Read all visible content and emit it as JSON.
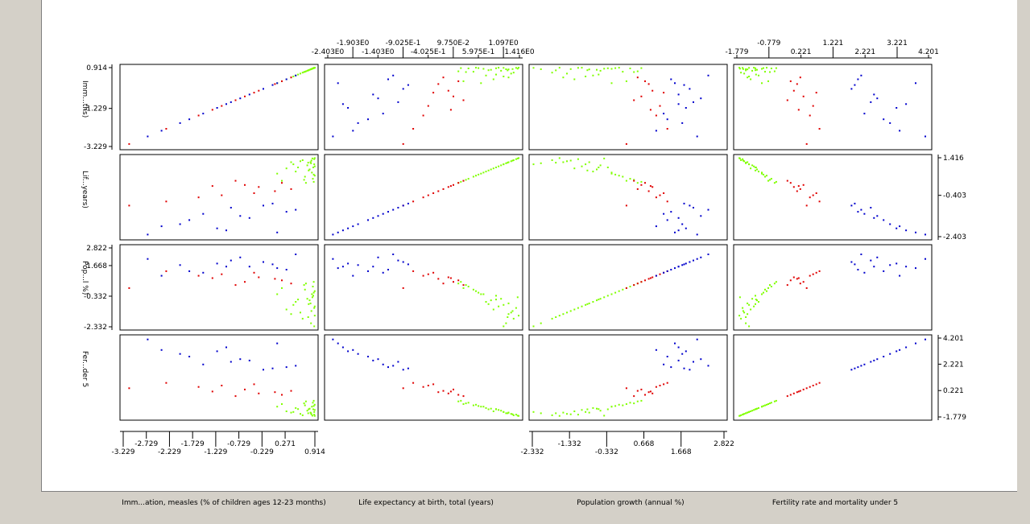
{
  "chart_data": {
    "type": "scatter-matrix",
    "variables": [
      {
        "name": "Imm...ths)",
        "full": "Imm...ation, measles (% of children ages 12-23 months)",
        "range": [
          -3.229,
          0.914
        ]
      },
      {
        "name": "Lif...years)",
        "full": "Life expectancy at birth, total (years)",
        "range": [
          -2.403,
          1.416
        ]
      },
      {
        "name": "Pop...l %)",
        "full": "Population growth (annual %)",
        "range": [
          -2.332,
          2.822
        ]
      },
      {
        "name": "Fer...der 5",
        "full": "Fertility rate and mortality under 5",
        "range": [
          -1.779,
          4.201
        ]
      }
    ],
    "axes": {
      "left_row0": {
        "ticks": [
          0.914,
          -1.229,
          -3.229
        ],
        "labels": [
          "0.914",
          "-1.229",
          "-3.229"
        ]
      },
      "right_row1": {
        "ticks": [
          1.416,
          -0.403,
          -2.403
        ],
        "labels": [
          "1.416",
          "-0.403",
          "-2.403"
        ]
      },
      "left_row2": {
        "ticks": [
          2.822,
          1.668,
          -0.332,
          -2.332
        ],
        "labels": [
          "2.822",
          "1.668",
          "-0.332",
          "-2.332"
        ]
      },
      "right_row3": {
        "ticks": [
          4.201,
          2.221,
          0.221,
          -1.779
        ],
        "labels": [
          "4.201",
          "2.221",
          "0.221",
          "-1.779"
        ]
      },
      "top_col1": {
        "upper": [
          {
            "v": -1.903,
            "t": "-1.903E0"
          },
          {
            "v": -0.9025,
            "t": "-9.025E-1"
          },
          {
            "v": 0.0975,
            "t": "9.750E-2"
          },
          {
            "v": 1.097,
            "t": "1.097E0"
          }
        ],
        "lower": [
          {
            "v": -2.403,
            "t": "-2.403E0"
          },
          {
            "v": -1.403,
            "t": "-1.403E0"
          },
          {
            "v": -0.4025,
            "t": "-4.025E-1"
          },
          {
            "v": 0.5975,
            "t": "5.975E-1"
          },
          {
            "v": 1.416,
            "t": "1.416E0"
          }
        ]
      },
      "top_col3": {
        "upper": [
          {
            "v": -0.779,
            "t": "-0.779"
          },
          {
            "v": 1.221,
            "t": "1.221"
          },
          {
            "v": 3.221,
            "t": "3.221"
          }
        ],
        "lower": [
          {
            "v": -1.779,
            "t": "-1.779"
          },
          {
            "v": 0.221,
            "t": "0.221"
          },
          {
            "v": 2.221,
            "t": "2.221"
          },
          {
            "v": 4.201,
            "t": "4.201"
          }
        ]
      },
      "bottom_col0": {
        "upper": [
          {
            "v": -2.729,
            "t": "-2.729"
          },
          {
            "v": -1.729,
            "t": "-1.729"
          },
          {
            "v": -0.729,
            "t": "-0.729"
          },
          {
            "v": 0.271,
            "t": "0.271"
          }
        ],
        "lower": [
          {
            "v": -3.229,
            "t": "-3.229"
          },
          {
            "v": -2.229,
            "t": "-2.229"
          },
          {
            "v": -1.229,
            "t": "-1.229"
          },
          {
            "v": -0.229,
            "t": "-0.229"
          },
          {
            "v": 0.914,
            "t": "0.914"
          }
        ]
      },
      "bottom_col2": {
        "upper": [
          {
            "v": -1.332,
            "t": "-1.332"
          },
          {
            "v": 0.668,
            "t": "0.668"
          },
          {
            "v": 2.822,
            "t": "2.822"
          }
        ],
        "lower": [
          {
            "v": -2.332,
            "t": "-2.332"
          },
          {
            "v": -0.332,
            "t": "-0.332"
          },
          {
            "v": 1.668,
            "t": "1.668"
          }
        ]
      }
    },
    "cluster_colors": {
      "green": "#80ff00",
      "red": "#e00000",
      "blue": "#0000cc"
    },
    "observations": [
      {
        "c": 0,
        "v": [
          0.82,
          1.2,
          -0.8,
          -1.45
        ]
      },
      {
        "c": 0,
        "v": [
          0.9,
          1.35,
          -1.1,
          -1.6
        ]
      },
      {
        "c": 0,
        "v": [
          0.75,
          1.05,
          -0.5,
          -1.3
        ]
      },
      {
        "c": 0,
        "v": [
          0.88,
          0.95,
          -0.3,
          -1.2
        ]
      },
      {
        "c": 0,
        "v": [
          0.6,
          1.25,
          -1.4,
          -1.55
        ]
      },
      {
        "c": 0,
        "v": [
          0.85,
          0.7,
          -0.2,
          -1.0
        ]
      },
      {
        "c": 0,
        "v": [
          0.45,
          1.1,
          -0.9,
          -1.4
        ]
      },
      {
        "c": 0,
        "v": [
          0.91,
          1.4,
          -1.6,
          -1.7
        ]
      },
      {
        "c": 0,
        "v": [
          0.7,
          0.5,
          0.1,
          -0.9
        ]
      },
      {
        "c": 0,
        "v": [
          0.8,
          0.85,
          -0.6,
          -1.15
        ]
      },
      {
        "c": 0,
        "v": [
          0.3,
          0.9,
          -1.2,
          -1.35
        ]
      },
      {
        "c": 0,
        "v": [
          0.87,
          0.4,
          0.3,
          -0.7
        ]
      },
      {
        "c": 0,
        "v": [
          0.65,
          1.3,
          -1.8,
          -1.65
        ]
      },
      {
        "c": 0,
        "v": [
          0.89,
          0.6,
          -0.1,
          -0.95
        ]
      },
      {
        "c": 0,
        "v": [
          0.5,
          0.75,
          -0.7,
          -1.1
        ]
      },
      {
        "c": 0,
        "v": [
          0.83,
          1.15,
          -2.1,
          -1.5
        ]
      },
      {
        "c": 0,
        "v": [
          0.2,
          0.3,
          0.2,
          -0.8
        ]
      },
      {
        "c": 0,
        "v": [
          0.91,
          1.0,
          -1.0,
          -1.25
        ]
      },
      {
        "c": 0,
        "v": [
          0.72,
          0.2,
          0.5,
          -0.6
        ]
      },
      {
        "c": 0,
        "v": [
          0.86,
          1.38,
          -0.4,
          -1.68
        ]
      },
      {
        "c": 0,
        "v": [
          0.4,
          1.2,
          -1.5,
          -1.45
        ]
      },
      {
        "c": 0,
        "v": [
          0.78,
          0.8,
          -0.85,
          -1.2
        ]
      },
      {
        "c": 0,
        "v": [
          0.91,
          0.55,
          0.0,
          -0.85
        ]
      },
      {
        "c": 0,
        "v": [
          0.1,
          0.65,
          -0.2,
          -1.0
        ]
      },
      {
        "c": 0,
        "v": [
          0.84,
          1.28,
          -1.3,
          -1.58
        ]
      },
      {
        "c": 0,
        "v": [
          0.68,
          0.35,
          0.4,
          -0.75
        ]
      },
      {
        "c": 0,
        "v": [
          0.9,
          1.1,
          -2.3,
          -1.4
        ]
      },
      {
        "c": 0,
        "v": [
          0.55,
          0.95,
          -0.55,
          -1.18
        ]
      },
      {
        "c": 0,
        "v": [
          0.89,
          0.25,
          0.6,
          -0.55
        ]
      },
      {
        "c": 0,
        "v": [
          0.77,
          1.18,
          -1.7,
          -1.5
        ]
      },
      {
        "c": 1,
        "v": [
          0.05,
          -0.2,
          0.8,
          0.1
        ]
      },
      {
        "c": 1,
        "v": [
          -0.6,
          0.1,
          0.6,
          0.3
        ]
      },
      {
        "c": 1,
        "v": [
          -1.1,
          -0.4,
          1.1,
          0.6
        ]
      },
      {
        "c": 1,
        "v": [
          -0.3,
          0.0,
          0.9,
          0.0
        ]
      },
      {
        "c": 1,
        "v": [
          0.4,
          -0.1,
          0.5,
          0.2
        ]
      },
      {
        "c": 1,
        "v": [
          -2.3,
          -0.7,
          1.3,
          0.8
        ]
      },
      {
        "c": 1,
        "v": [
          -0.8,
          0.3,
          0.4,
          -0.2
        ]
      },
      {
        "c": 1,
        "v": [
          -1.6,
          -0.5,
          1.0,
          0.5
        ]
      },
      {
        "c": 1,
        "v": [
          0.2,
          0.2,
          0.7,
          -0.1
        ]
      },
      {
        "c": 1,
        "v": [
          -3.1,
          -0.9,
          0.2,
          0.4
        ]
      },
      {
        "c": 1,
        "v": [
          -0.4,
          -0.3,
          1.2,
          0.7
        ]
      },
      {
        "c": 1,
        "v": [
          -1.3,
          0.05,
          0.85,
          0.15
        ]
      },
      {
        "c": 2,
        "v": [
          -0.5,
          -1.5,
          1.6,
          2.5
        ]
      },
      {
        "c": 2,
        "v": [
          -1.2,
          -2.0,
          1.8,
          3.2
        ]
      },
      {
        "c": 2,
        "v": [
          0.3,
          -1.2,
          1.4,
          2.0
        ]
      },
      {
        "c": 2,
        "v": [
          -2.0,
          -1.8,
          1.7,
          3.0
        ]
      },
      {
        "c": 2,
        "v": [
          -0.9,
          -1.0,
          2.0,
          2.4
        ]
      },
      {
        "c": 2,
        "v": [
          0.1,
          -2.2,
          1.5,
          3.8
        ]
      },
      {
        "c": 2,
        "v": [
          -1.5,
          -1.3,
          1.2,
          2.2
        ]
      },
      {
        "c": 2,
        "v": [
          -2.7,
          -2.3,
          2.1,
          4.1
        ]
      },
      {
        "c": 2,
        "v": [
          -0.2,
          -0.9,
          1.9,
          1.8
        ]
      },
      {
        "c": 2,
        "v": [
          -1.8,
          -1.6,
          1.3,
          2.8
        ]
      },
      {
        "c": 2,
        "v": [
          0.5,
          -1.1,
          2.4,
          2.1
        ]
      },
      {
        "c": 2,
        "v": [
          -1.0,
          -2.1,
          1.6,
          3.5
        ]
      },
      {
        "c": 2,
        "v": [
          -0.7,
          -1.4,
          2.2,
          2.6
        ]
      },
      {
        "c": 2,
        "v": [
          -2.4,
          -1.9,
          1.0,
          3.3
        ]
      },
      {
        "c": 2,
        "v": [
          0.0,
          -0.8,
          1.75,
          1.9
        ]
      }
    ]
  },
  "column_titles": [
    "Imm...ation, measles (% of children ages 12-23 months)",
    "Life expectancy at birth, total (years)",
    "Population growth (annual %)",
    "Fertility rate and mortality under 5"
  ]
}
